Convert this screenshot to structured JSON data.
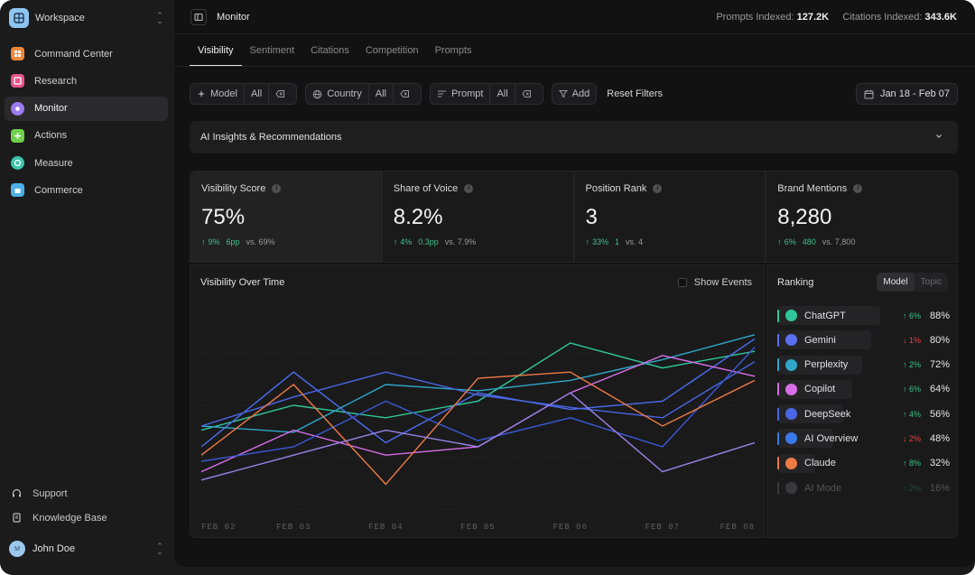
{
  "sidebar": {
    "workspace": "Workspace",
    "items": [
      {
        "label": "Command Center",
        "icon": "command-icon",
        "color": "#f0883a"
      },
      {
        "label": "Research",
        "icon": "research-icon",
        "color": "#e9558a"
      },
      {
        "label": "Monitor",
        "icon": "monitor-icon",
        "color": "#9a7cf0"
      },
      {
        "label": "Actions",
        "icon": "actions-icon",
        "color": "#6fd04a"
      },
      {
        "label": "Measure",
        "icon": "measure-icon",
        "color": "#3cc4a8"
      },
      {
        "label": "Commerce",
        "icon": "commerce-icon",
        "color": "#4cb0e8"
      }
    ],
    "support": "Support",
    "knowledge_base": "Knowledge Base",
    "user": {
      "name": "John Doe",
      "initials": "M"
    }
  },
  "header": {
    "title": "Monitor",
    "prompts_label": "Prompts Indexed:",
    "prompts_value": "127.2K",
    "citations_label": "Citations Indexed:",
    "citations_value": "343.6K"
  },
  "tabs": [
    "Visibility",
    "Sentiment",
    "Citations",
    "Competition",
    "Prompts"
  ],
  "filters": {
    "model": "Model",
    "model_value": "All",
    "country": "Country",
    "country_value": "All",
    "prompt": "Prompt",
    "prompt_value": "All",
    "add": "Add",
    "reset": "Reset Filters",
    "date_range": "Jan 18 - Feb 07"
  },
  "insights": {
    "title": "AI Insights & Recommendations"
  },
  "kpis": [
    {
      "label": "Visibility Score",
      "value": "75%",
      "delta": "9%",
      "pp": "6pp",
      "vs": "vs. 69%"
    },
    {
      "label": "Share of Voice",
      "value": "8.2%",
      "delta": "4%",
      "pp": "0.3pp",
      "vs": "vs. 7.9%"
    },
    {
      "label": "Position Rank",
      "value": "3",
      "delta": "33%",
      "pp": "1",
      "vs": "vs. 4"
    },
    {
      "label": "Brand Mentions",
      "value": "8,280",
      "delta": "6%",
      "pp": "480",
      "vs": "vs. 7,800"
    }
  ],
  "chart": {
    "title": "Visibility Over Time",
    "show_events": "Show Events"
  },
  "chart_data": {
    "type": "line",
    "x": [
      "FEB 02",
      "FEB 03",
      "FEB 04",
      "FEB 05",
      "FEB 06",
      "FEB 07",
      "FEB 08"
    ],
    "ylim": [
      0,
      100
    ],
    "grid": true,
    "series": [
      {
        "name": "ChatGPT",
        "color": "#2fc79a",
        "values": [
          38,
          50,
          44,
          52,
          80,
          68,
          76
        ]
      },
      {
        "name": "Gemini",
        "color": "#4b6ef0",
        "values": [
          30,
          66,
          32,
          56,
          48,
          52,
          82
        ]
      },
      {
        "name": "Perplexity",
        "color": "#2fa7c9",
        "values": [
          40,
          37,
          60,
          57,
          62,
          72,
          84
        ]
      },
      {
        "name": "Copilot",
        "color": "#d86ee8",
        "values": [
          18,
          38,
          26,
          30,
          56,
          74,
          64
        ]
      },
      {
        "name": "DeepSeek",
        "color": "#4a67e6",
        "values": [
          40,
          54,
          66,
          55,
          49,
          44,
          71
        ]
      },
      {
        "name": "AI Overview",
        "color": "#3a5ad8",
        "values": [
          23,
          30,
          52,
          33,
          44,
          30,
          78
        ]
      },
      {
        "name": "Claude",
        "color": "#ee7a45",
        "values": [
          26,
          60,
          12,
          63,
          66,
          40,
          62
        ]
      },
      {
        "name": "AI Mode",
        "color": "#9a82e8",
        "values": [
          14,
          26,
          38,
          30,
          56,
          18,
          32
        ]
      }
    ]
  },
  "ranking": {
    "title": "Ranking",
    "segments": [
      "Model",
      "Topic"
    ],
    "items": [
      {
        "name": "ChatGPT",
        "delta": "6%",
        "dir": "up",
        "value": "88%",
        "color": "#2fc79a",
        "bar": 0.88
      },
      {
        "name": "Gemini",
        "delta": "1%",
        "dir": "down",
        "value": "80%",
        "color": "#5a6ef0",
        "bar": 0.8
      },
      {
        "name": "Perplexity",
        "delta": "2%",
        "dir": "up",
        "value": "72%",
        "color": "#2fa7c9",
        "bar": 0.72
      },
      {
        "name": "Copilot",
        "delta": "6%",
        "dir": "up",
        "value": "64%",
        "color": "#d86ee8",
        "bar": 0.64
      },
      {
        "name": "DeepSeek",
        "delta": "4%",
        "dir": "up",
        "value": "56%",
        "color": "#4a67e6",
        "bar": 0.56
      },
      {
        "name": "AI Overview",
        "delta": "2%",
        "dir": "down",
        "value": "48%",
        "color": "#3a7ae8",
        "bar": 0.48
      },
      {
        "name": "Claude",
        "delta": "8%",
        "dir": "up",
        "value": "32%",
        "color": "#ee7a45",
        "bar": 0.32
      },
      {
        "name": "AI Mode",
        "delta": "2%",
        "dir": "up",
        "value": "16%",
        "color": "#8a8a8a",
        "bar": 0.16
      }
    ]
  }
}
